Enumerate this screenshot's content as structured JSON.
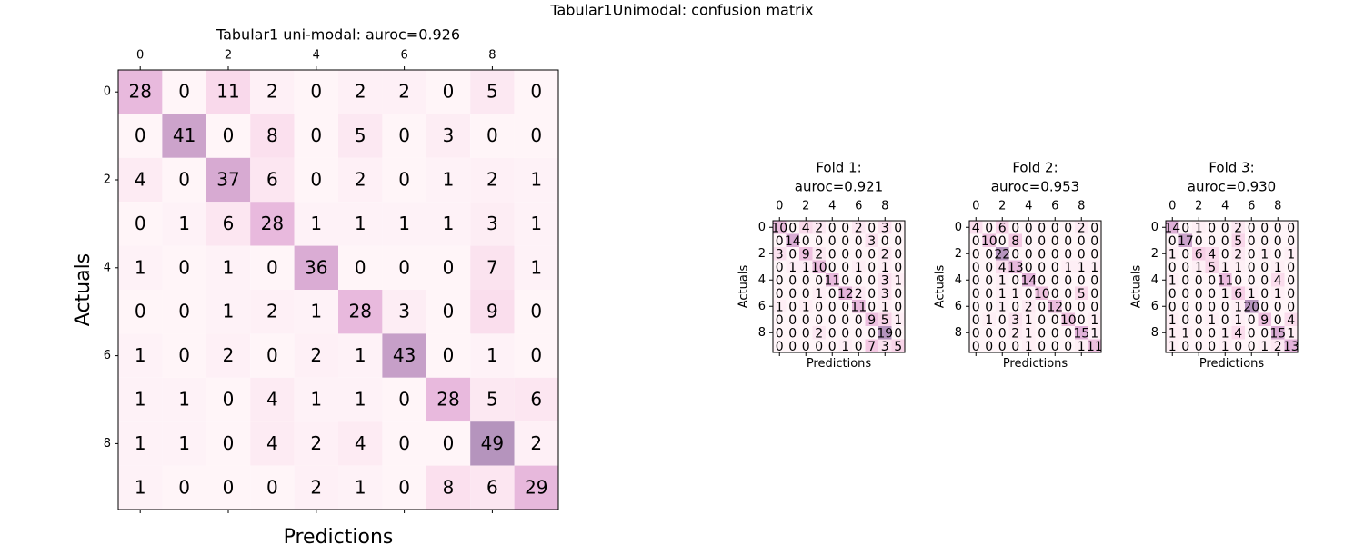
{
  "title": "Tabular1Unimodal: confusion matrix",
  "cmap": [
    "#fff5f8",
    "#f6cbe4",
    "#e3b2da",
    "#b594bd"
  ],
  "chart_data": [
    {
      "type": "heatmap",
      "title": [
        "Tabular1 uni-modal: auroc=0.926"
      ],
      "xlabel": "Predictions",
      "ylabel": "Actuals",
      "xlim": [
        -0.5,
        9.5
      ],
      "ylim": [
        9.5,
        -0.5
      ],
      "xticks": [
        0,
        2,
        4,
        6,
        8
      ],
      "yticks": [
        0,
        2,
        4,
        6,
        8
      ],
      "values": [
        [
          28,
          0,
          11,
          2,
          0,
          2,
          2,
          0,
          5,
          0
        ],
        [
          0,
          41,
          0,
          8,
          0,
          5,
          0,
          3,
          0,
          0
        ],
        [
          4,
          0,
          37,
          6,
          0,
          2,
          0,
          1,
          2,
          1
        ],
        [
          0,
          1,
          6,
          28,
          1,
          1,
          1,
          1,
          3,
          1
        ],
        [
          1,
          0,
          1,
          0,
          36,
          0,
          0,
          0,
          7,
          1
        ],
        [
          0,
          0,
          1,
          2,
          1,
          28,
          3,
          0,
          9,
          0
        ],
        [
          1,
          0,
          2,
          0,
          2,
          1,
          43,
          0,
          1,
          0
        ],
        [
          1,
          1,
          0,
          4,
          1,
          1,
          0,
          28,
          5,
          6
        ],
        [
          1,
          1,
          0,
          4,
          2,
          4,
          0,
          0,
          49,
          2
        ],
        [
          1,
          0,
          0,
          0,
          2,
          1,
          0,
          8,
          6,
          29
        ]
      ]
    },
    {
      "type": "heatmap",
      "title": [
        "Fold 1:",
        "auroc=0.921"
      ],
      "xlabel": "Predictions",
      "ylabel": "Actuals",
      "xlim": [
        -0.5,
        9.5
      ],
      "ylim": [
        9.5,
        -0.5
      ],
      "xticks": [
        0,
        2,
        4,
        6,
        8
      ],
      "yticks": [
        0,
        2,
        4,
        6,
        8
      ],
      "values": [
        [
          10,
          0,
          4,
          2,
          0,
          0,
          2,
          0,
          3,
          0
        ],
        [
          0,
          14,
          0,
          0,
          0,
          0,
          0,
          3,
          0,
          0
        ],
        [
          3,
          0,
          9,
          2,
          0,
          0,
          0,
          0,
          2,
          0
        ],
        [
          0,
          1,
          1,
          10,
          0,
          0,
          1,
          0,
          1,
          0
        ],
        [
          0,
          0,
          0,
          0,
          11,
          0,
          0,
          0,
          3,
          1
        ],
        [
          0,
          0,
          0,
          1,
          0,
          12,
          2,
          0,
          3,
          0
        ],
        [
          1,
          0,
          1,
          0,
          0,
          0,
          11,
          0,
          1,
          0
        ],
        [
          0,
          0,
          0,
          0,
          0,
          0,
          0,
          9,
          5,
          1
        ],
        [
          0,
          0,
          0,
          2,
          0,
          0,
          0,
          0,
          19,
          0
        ],
        [
          0,
          0,
          0,
          0,
          0,
          1,
          0,
          7,
          3,
          5
        ]
      ]
    },
    {
      "type": "heatmap",
      "title": [
        "Fold 2:",
        "auroc=0.953"
      ],
      "xlabel": "Predictions",
      "ylabel": "Actuals",
      "xlim": [
        -0.5,
        9.5
      ],
      "ylim": [
        9.5,
        -0.5
      ],
      "xticks": [
        0,
        2,
        4,
        6,
        8
      ],
      "yticks": [
        0,
        2,
        4,
        6,
        8
      ],
      "values": [
        [
          4,
          0,
          6,
          0,
          0,
          0,
          0,
          0,
          2,
          0
        ],
        [
          0,
          10,
          0,
          8,
          0,
          0,
          0,
          0,
          0,
          0
        ],
        [
          0,
          0,
          22,
          0,
          0,
          0,
          0,
          0,
          0,
          0
        ],
        [
          0,
          0,
          4,
          13,
          0,
          0,
          0,
          1,
          1,
          1
        ],
        [
          0,
          0,
          1,
          0,
          14,
          0,
          0,
          0,
          0,
          0
        ],
        [
          0,
          0,
          1,
          1,
          0,
          10,
          0,
          0,
          5,
          0
        ],
        [
          0,
          0,
          1,
          0,
          2,
          0,
          12,
          0,
          0,
          0
        ],
        [
          0,
          1,
          0,
          3,
          1,
          0,
          0,
          10,
          0,
          1
        ],
        [
          0,
          0,
          0,
          2,
          1,
          0,
          0,
          0,
          15,
          1
        ],
        [
          0,
          0,
          0,
          0,
          1,
          0,
          0,
          0,
          1,
          11
        ]
      ]
    },
    {
      "type": "heatmap",
      "title": [
        "Fold 3:",
        "auroc=0.930"
      ],
      "xlabel": "Predictions",
      "ylabel": "Actuals",
      "xlim": [
        -0.5,
        9.5
      ],
      "ylim": [
        9.5,
        -0.5
      ],
      "xticks": [
        0,
        2,
        4,
        6,
        8
      ],
      "yticks": [
        0,
        2,
        4,
        6,
        8
      ],
      "values": [
        [
          14,
          0,
          1,
          0,
          0,
          2,
          0,
          0,
          0,
          0
        ],
        [
          0,
          17,
          0,
          0,
          0,
          5,
          0,
          0,
          0,
          0
        ],
        [
          1,
          0,
          6,
          4,
          0,
          2,
          0,
          1,
          0,
          1
        ],
        [
          0,
          0,
          1,
          5,
          1,
          1,
          0,
          0,
          1,
          0
        ],
        [
          1,
          0,
          0,
          0,
          11,
          0,
          0,
          0,
          4,
          0
        ],
        [
          0,
          0,
          0,
          0,
          1,
          6,
          1,
          0,
          1,
          0
        ],
        [
          0,
          0,
          0,
          0,
          0,
          1,
          20,
          0,
          0,
          0
        ],
        [
          1,
          0,
          0,
          1,
          0,
          1,
          0,
          9,
          0,
          4
        ],
        [
          1,
          1,
          0,
          0,
          1,
          4,
          0,
          0,
          15,
          1
        ],
        [
          1,
          0,
          0,
          0,
          1,
          0,
          0,
          1,
          2,
          13
        ]
      ]
    }
  ]
}
